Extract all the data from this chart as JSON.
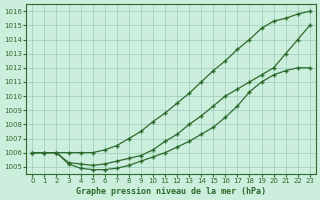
{
  "title": "Graphe pression niveau de la mer (hPa)",
  "x_values": [
    0,
    1,
    2,
    3,
    4,
    5,
    6,
    7,
    8,
    9,
    10,
    11,
    12,
    13,
    14,
    15,
    16,
    17,
    18,
    19,
    20,
    21,
    22,
    23
  ],
  "line1": [
    1006.0,
    1006.0,
    1006.0,
    1006.0,
    1006.0,
    1006.0,
    1006.2,
    1006.5,
    1007.0,
    1007.5,
    1008.2,
    1008.8,
    1009.5,
    1010.2,
    1011.0,
    1011.8,
    1012.5,
    1013.3,
    1014.0,
    1014.8,
    1015.3,
    1015.5,
    1015.8,
    1016.0
  ],
  "line2": [
    1006.0,
    1006.0,
    1006.0,
    1005.3,
    1005.2,
    1005.1,
    1005.2,
    1005.4,
    1005.6,
    1005.8,
    1006.2,
    1006.8,
    1007.3,
    1008.0,
    1008.6,
    1009.3,
    1010.0,
    1010.5,
    1011.0,
    1011.5,
    1012.0,
    1013.0,
    1014.0,
    1015.0
  ],
  "line3": [
    1006.0,
    1006.0,
    1006.0,
    1005.2,
    1004.9,
    1004.8,
    1004.8,
    1004.9,
    1005.1,
    1005.4,
    1005.7,
    1006.0,
    1006.4,
    1006.8,
    1007.3,
    1007.8,
    1008.5,
    1009.3,
    1010.3,
    1011.0,
    1011.5,
    1011.8,
    1012.0,
    1012.0
  ],
  "line_color": "#2d6a2d",
  "bg_color": "#cceedd",
  "grid_color": "#99ccbb",
  "ylim": [
    1004.5,
    1016.5
  ],
  "yticks": [
    1005,
    1006,
    1007,
    1008,
    1009,
    1010,
    1011,
    1012,
    1013,
    1014,
    1015,
    1016
  ],
  "xlim": [
    -0.5,
    23.5
  ],
  "xticks": [
    0,
    1,
    2,
    3,
    4,
    5,
    6,
    7,
    8,
    9,
    10,
    11,
    12,
    13,
    14,
    15,
    16,
    17,
    18,
    19,
    20,
    21,
    22,
    23
  ]
}
